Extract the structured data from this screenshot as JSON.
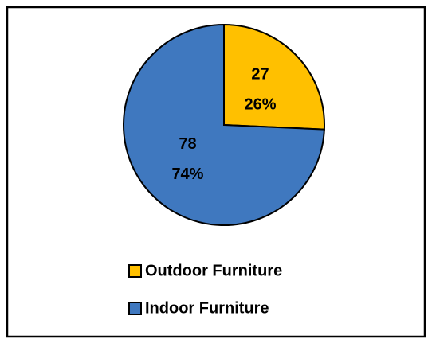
{
  "chart_data": {
    "type": "pie",
    "categories": [
      "Outdoor Furniture",
      "Indoor Furniture"
    ],
    "values": [
      27,
      78
    ],
    "percent_labels": [
      "26%",
      "74%"
    ],
    "colors": [
      "#ffc000",
      "#3f78bf"
    ],
    "legend": "bottom"
  }
}
